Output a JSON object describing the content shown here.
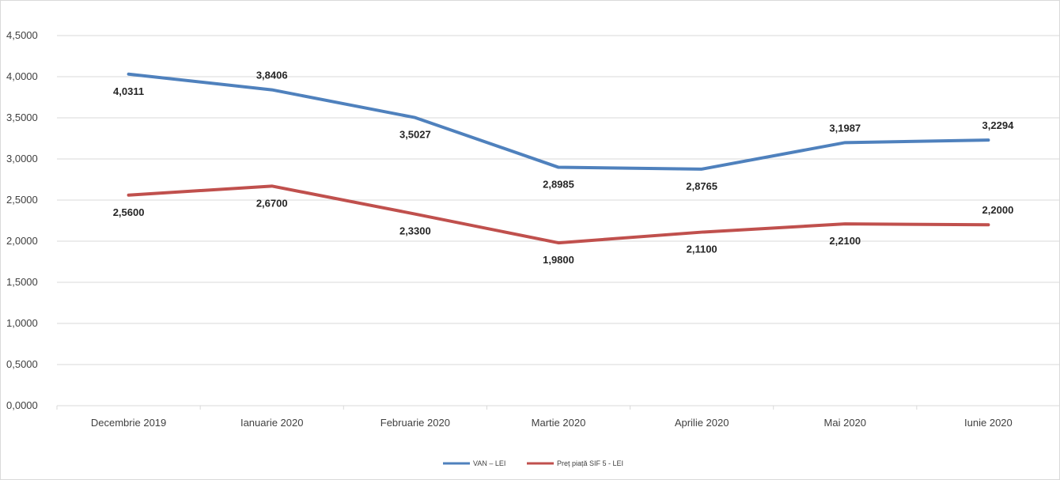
{
  "chart_data": {
    "type": "line",
    "categories": [
      "Decembrie 2019",
      "Ianuarie 2020",
      "Februarie 2020",
      "Martie 2020",
      "Aprilie 2020",
      "Mai 2020",
      "Iunie 2020"
    ],
    "y_ticks": [
      "0,0000",
      "0,5000",
      "1,0000",
      "1,5000",
      "2,0000",
      "2,5000",
      "3,0000",
      "3,5000",
      "4,0000",
      "4,5000"
    ],
    "ylim": [
      0,
      4.5
    ],
    "grid": true,
    "legend_position": "bottom",
    "series": [
      {
        "name": "VAN – LEI",
        "color": "#4f81bd",
        "values": [
          4.0311,
          3.8406,
          3.5027,
          2.8985,
          2.8765,
          3.1987,
          3.2294
        ],
        "labels": [
          "4,0311",
          "3,8406",
          "3,5027",
          "2,8985",
          "2,8765",
          "3,1987",
          "3,2294"
        ],
        "label_pos": [
          "below",
          "above",
          "below",
          "below",
          "below",
          "above",
          "above"
        ]
      },
      {
        "name": "Preț piață SIF 5 - LEI",
        "color": "#c0504d",
        "values": [
          2.56,
          2.67,
          2.33,
          1.98,
          2.11,
          2.21,
          2.2
        ],
        "labels": [
          "2,5600",
          "2,6700",
          "2,3300",
          "1,9800",
          "2,1100",
          "2,2100",
          "2,2000"
        ],
        "label_pos": [
          "below",
          "below",
          "below",
          "below",
          "below",
          "below",
          "above"
        ]
      }
    ]
  }
}
